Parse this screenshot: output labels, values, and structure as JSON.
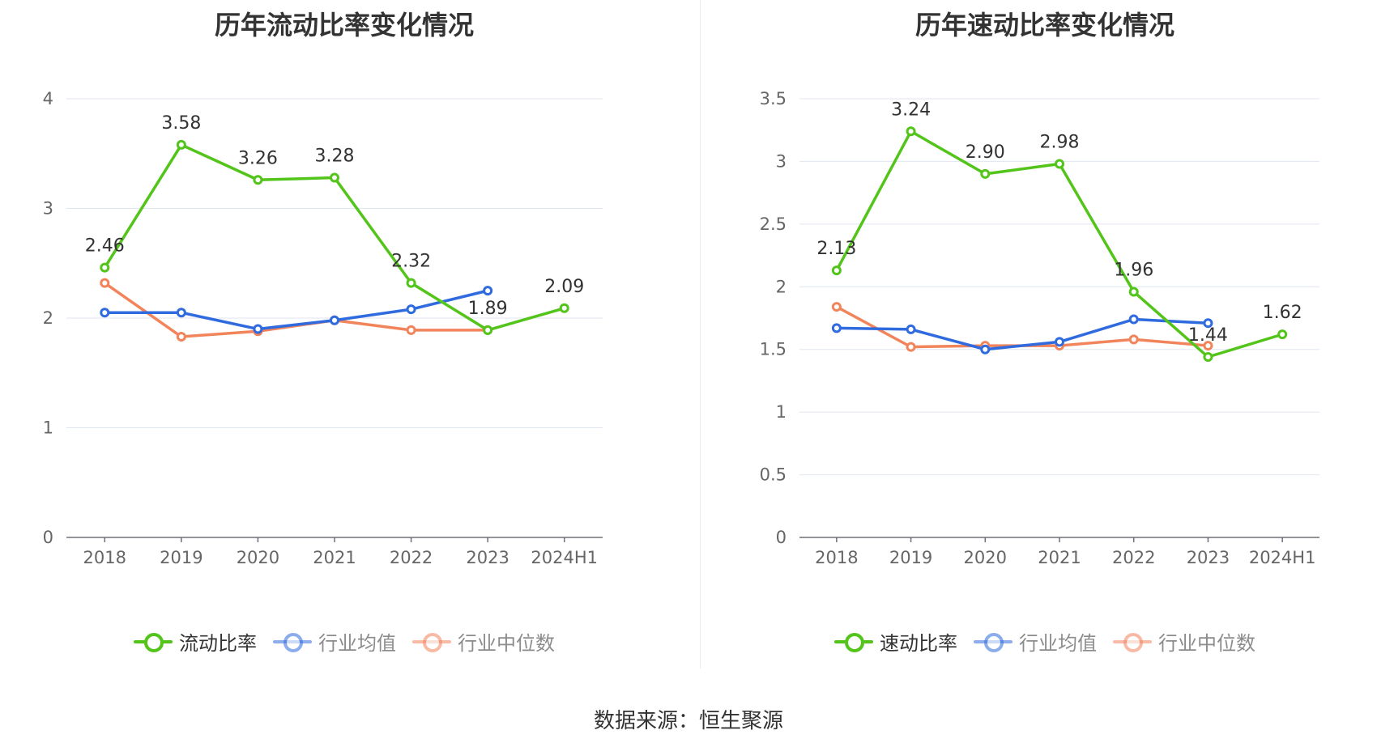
{
  "source_text": "数据来源：恒生聚源",
  "chart_data": [
    {
      "type": "line",
      "title": "历年流动比率变化情况",
      "categories": [
        "2018",
        "2019",
        "2020",
        "2021",
        "2022",
        "2023",
        "2024H1"
      ],
      "ylim": [
        0,
        4
      ],
      "yticks": [
        0,
        1,
        2,
        3,
        4
      ],
      "ytick_labels": [
        "0",
        "1",
        "2",
        "3",
        "4"
      ],
      "grid": true,
      "legend_position": "bottom",
      "series": [
        {
          "name": "流动比率",
          "color": "#52c41a",
          "values": [
            2.46,
            3.58,
            3.26,
            3.28,
            2.32,
            1.89,
            2.09
          ],
          "labels": [
            "2.46",
            "3.58",
            "3.26",
            "3.28",
            "2.32",
            "1.89",
            "2.09"
          ]
        },
        {
          "name": "行业均值",
          "color": "#2f6bde",
          "values": [
            2.05,
            2.05,
            1.9,
            1.98,
            2.08,
            2.25,
            null
          ]
        },
        {
          "name": "行业中位数",
          "color": "#f2845c",
          "values": [
            2.32,
            1.83,
            1.88,
            1.98,
            1.89,
            1.89,
            null
          ]
        }
      ]
    },
    {
      "type": "line",
      "title": "历年速动比率变化情况",
      "categories": [
        "2018",
        "2019",
        "2020",
        "2021",
        "2022",
        "2023",
        "2024H1"
      ],
      "ylim": [
        0,
        3.5
      ],
      "yticks": [
        0,
        0.5,
        1,
        1.5,
        2,
        2.5,
        3,
        3.5
      ],
      "ytick_labels": [
        "0",
        "0.5",
        "1",
        "1.5",
        "2",
        "2.5",
        "3",
        "3.5"
      ],
      "grid": true,
      "legend_position": "bottom",
      "series": [
        {
          "name": "速动比率",
          "color": "#52c41a",
          "values": [
            2.13,
            3.24,
            2.9,
            2.98,
            1.96,
            1.44,
            1.62
          ],
          "labels": [
            "2.13",
            "3.24",
            "2.90",
            "2.98",
            "1.96",
            "1.44",
            "1.62"
          ]
        },
        {
          "name": "行业均值",
          "color": "#2f6bde",
          "values": [
            1.67,
            1.66,
            1.5,
            1.56,
            1.74,
            1.71,
            null
          ]
        },
        {
          "name": "行业中位数",
          "color": "#f2845c",
          "values": [
            1.84,
            1.52,
            1.53,
            1.53,
            1.58,
            1.53,
            null
          ]
        }
      ]
    }
  ]
}
